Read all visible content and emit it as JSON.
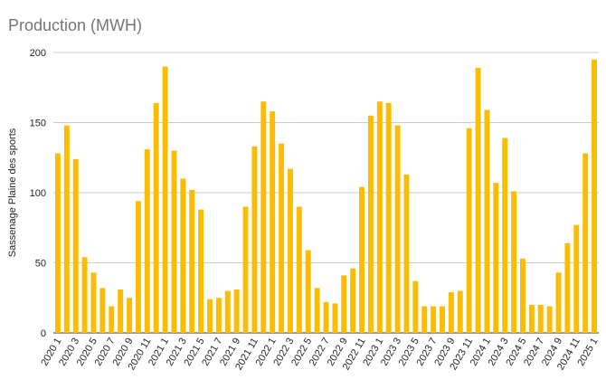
{
  "chart_data": {
    "type": "bar",
    "title": "Production (MWH)",
    "xlabel": "",
    "ylabel": "Sassenage Plaine des sports",
    "ylim": [
      0,
      200
    ],
    "yticks": [
      0,
      50,
      100,
      150,
      200
    ],
    "grid": true,
    "legend": "none",
    "bar_color": "#fbbc04",
    "categories": [
      "2020 1",
      "2020 2",
      "2020 3",
      "2020 4",
      "2020 5",
      "2020 6",
      "2020 7",
      "2020 8",
      "2020 9",
      "2020 10",
      "2020 11",
      "2020 12",
      "2021 1",
      "2021 2",
      "2021 3",
      "2021 4",
      "2021 5",
      "2021 6",
      "2021 7",
      "2021 8",
      "2021 9",
      "2021 10",
      "2021 11",
      "2021 12",
      "2022 1",
      "2022 2",
      "2022 3",
      "2022 4",
      "2022 5",
      "2022 6",
      "2022 7",
      "2022 8",
      "2022 9",
      "2022 10",
      "2022 11",
      "2022 12",
      "2023 1",
      "2023 2",
      "2023 3",
      "2023 4",
      "2023 5",
      "2023 6",
      "2023 7",
      "2023 8",
      "2023 9",
      "2023 10",
      "2023 11",
      "2023 12",
      "2024 1",
      "2024 2",
      "2024 3",
      "2024 4",
      "2024 5",
      "2024 6",
      "2024 7",
      "2024 8",
      "2024 9",
      "2024 10",
      "2024 11",
      "2024 12",
      "2025 1"
    ],
    "x_tick_labels": [
      "2020 1",
      "2020 3",
      "2020 5",
      "2020 7",
      "2020 9",
      "2020 11",
      "2021 1",
      "2021 3",
      "2021 5",
      "2021 7",
      "2021 9",
      "2021 11",
      "2022 1",
      "2022 3",
      "2022 5",
      "2022 7",
      "2022 9",
      "2022 11",
      "2023 1",
      "2023 3",
      "2023 5",
      "2023 7",
      "2023 9",
      "2023 11",
      "2024 1",
      "2024 3",
      "2024 5",
      "2024 7",
      "2024 9",
      "2024 11",
      "2025 1"
    ],
    "values": [
      128,
      148,
      124,
      54,
      43,
      32,
      19,
      31,
      25,
      94,
      131,
      164,
      190,
      130,
      110,
      102,
      88,
      24,
      25,
      30,
      31,
      90,
      133,
      165,
      158,
      135,
      117,
      90,
      59,
      32,
      22,
      21,
      41,
      46,
      104,
      155,
      165,
      164,
      148,
      113,
      37,
      19,
      19,
      19,
      29,
      30,
      146,
      189,
      159,
      107,
      139,
      101,
      53,
      20,
      20,
      19,
      43,
      64,
      77,
      128,
      195
    ]
  }
}
